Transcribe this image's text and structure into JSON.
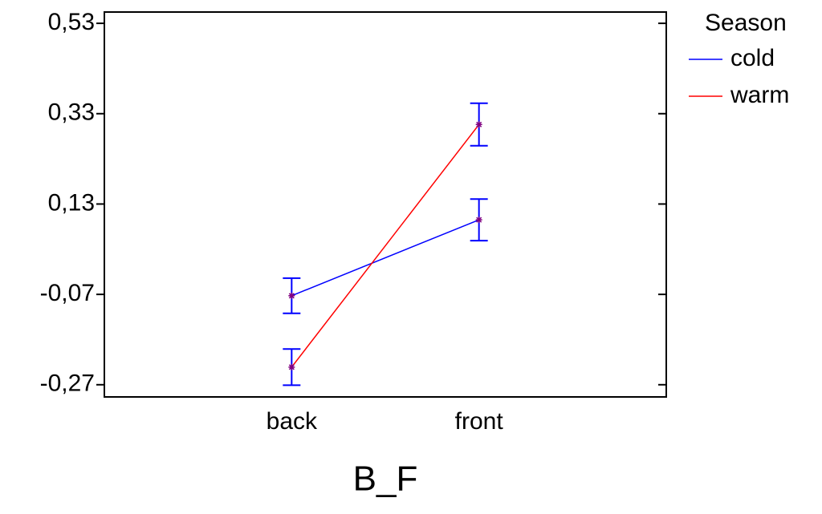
{
  "chart_data": {
    "type": "line",
    "x_label": "B_F",
    "categories": [
      "back",
      "front"
    ],
    "legend_title": "Season",
    "legend_position": "top-right",
    "series": [
      {
        "name": "cold",
        "color": "#0000ff",
        "values": [
          -0.073,
          0.095
        ],
        "errors": [
          0.039,
          0.046
        ]
      },
      {
        "name": "warm",
        "color": "#ff0000",
        "values": [
          -0.231,
          0.306
        ],
        "errors": [
          0.04,
          0.047
        ]
      }
    ],
    "error_color": "#0000ff",
    "marker_color": "#800080",
    "ylim": [
      -0.297,
      0.555
    ],
    "yticks": [
      {
        "value": -0.27,
        "label": "-0,27"
      },
      {
        "value": -0.07,
        "label": "-0,07"
      },
      {
        "value": 0.13,
        "label": "0,13"
      },
      {
        "value": 0.33,
        "label": "0,33"
      },
      {
        "value": 0.53,
        "label": "0,53"
      }
    ]
  }
}
